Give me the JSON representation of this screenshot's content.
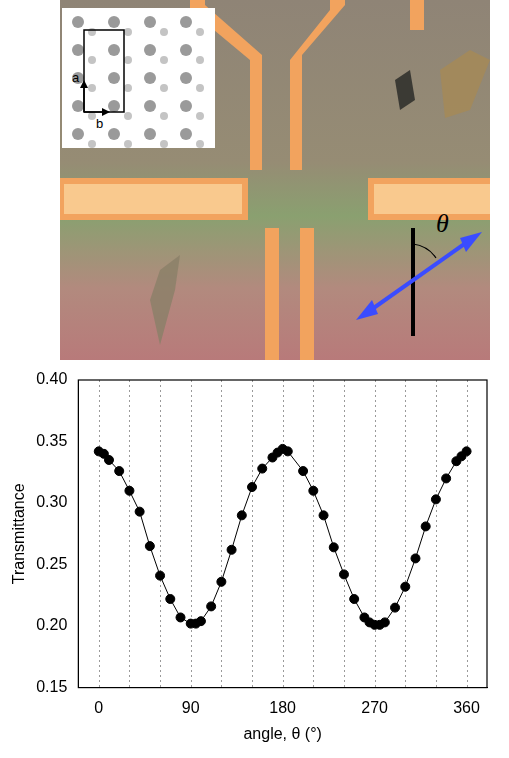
{
  "chart_data": {
    "type": "line",
    "marker": "circle",
    "color": "#000000",
    "x_label": "angle, θ (°)",
    "y_label": "Transmittance",
    "x": [
      0,
      5,
      10,
      20,
      30,
      40,
      50,
      60,
      70,
      80,
      90,
      95,
      100,
      110,
      120,
      130,
      140,
      150,
      160,
      170,
      175,
      180,
      185,
      200,
      210,
      220,
      230,
      240,
      250,
      260,
      265,
      270,
      275,
      280,
      290,
      300,
      310,
      320,
      330,
      340,
      350,
      355,
      360
    ],
    "values": [
      0.342,
      0.34,
      0.335,
      0.326,
      0.31,
      0.293,
      0.265,
      0.241,
      0.222,
      0.207,
      0.202,
      0.202,
      0.204,
      0.216,
      0.236,
      0.262,
      0.29,
      0.313,
      0.328,
      0.337,
      0.341,
      0.344,
      0.342,
      0.326,
      0.31,
      0.29,
      0.264,
      0.242,
      0.222,
      0.207,
      0.203,
      0.201,
      0.201,
      0.203,
      0.215,
      0.232,
      0.255,
      0.281,
      0.303,
      0.32,
      0.334,
      0.338,
      0.342
    ],
    "xlim": [
      -20,
      380
    ],
    "xticks": [
      0,
      90,
      180,
      270,
      360
    ],
    "ylim": [
      0.15,
      0.4
    ],
    "yticks": [
      0.15,
      {
        "value": 0.2,
        "label": "0.20"
      },
      0.25,
      {
        "value": 0.3,
        "label": "0.30"
      },
      0.35,
      {
        "value": 0.4,
        "label": "0.40"
      }
    ],
    "grid": true
  },
  "micrograph": {
    "inset_axes": [
      "a",
      "b"
    ],
    "angle_label": "θ"
  }
}
